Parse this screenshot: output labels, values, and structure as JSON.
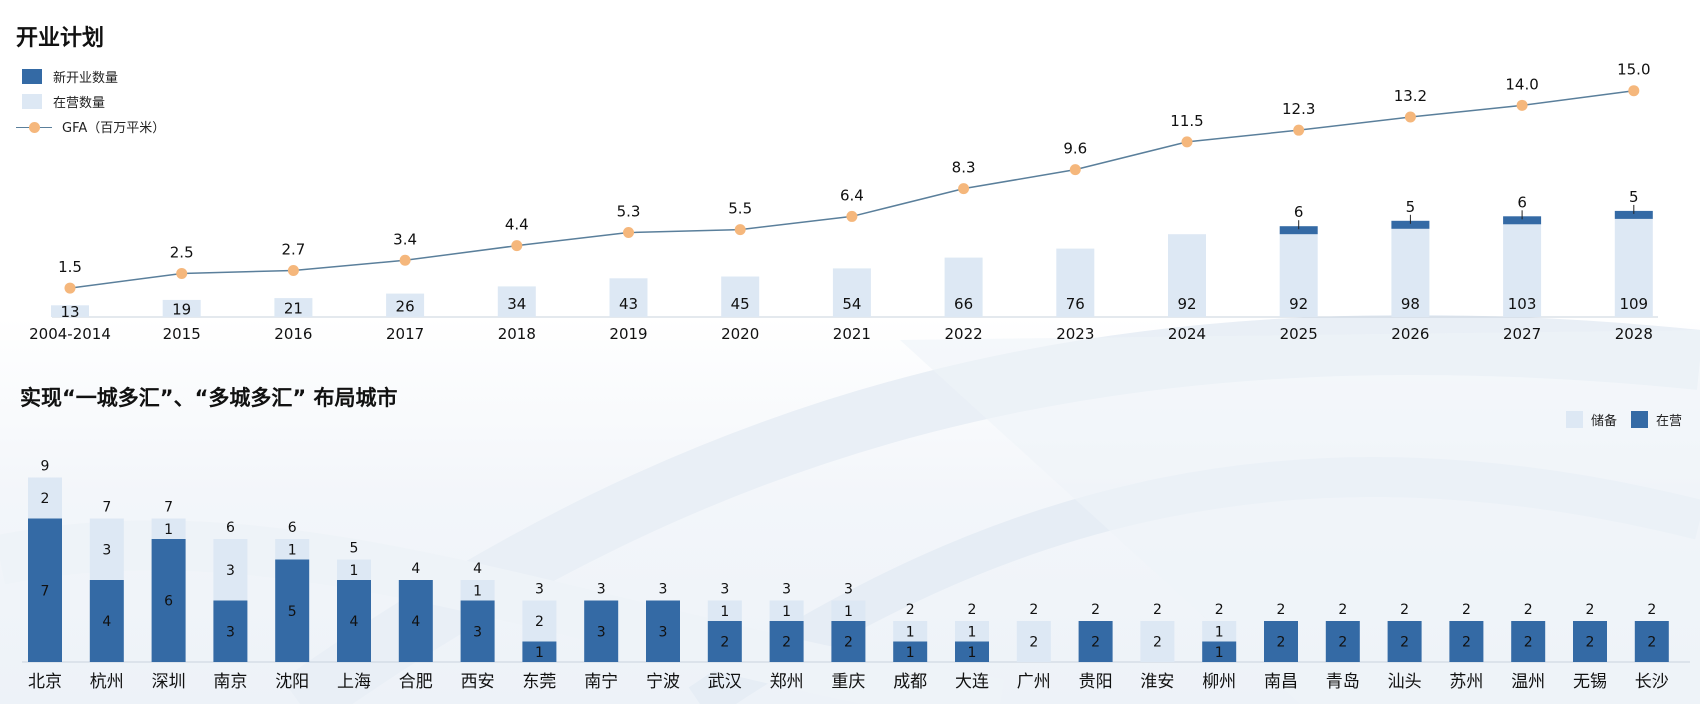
{
  "titles": {
    "top": "开业计划",
    "bottom": "实现“一城多汇”、“多城多汇” 布局城市"
  },
  "legend_top": {
    "new": "新开业数量",
    "operating": "在营数量",
    "gfa": "GFA（百万平米）"
  },
  "legend_bottom": {
    "reserve": "储备",
    "operating": "在营"
  },
  "colors": {
    "dark": "#346aa5",
    "light": "#dde8f4",
    "line": "#5a7f9b",
    "marker": "#f5b77c"
  },
  "chart_data": [
    {
      "type": "bar",
      "title": "开业计划",
      "categories": [
        "2004-2014",
        "2015",
        "2016",
        "2017",
        "2018",
        "2019",
        "2020",
        "2021",
        "2022",
        "2023",
        "2024",
        "2025",
        "2026",
        "2027",
        "2028"
      ],
      "series": [
        {
          "name": "在营数量",
          "values": [
            13,
            19,
            21,
            26,
            34,
            43,
            45,
            54,
            66,
            76,
            92,
            92,
            98,
            103,
            109
          ]
        },
        {
          "name": "新开业数量",
          "values": [
            0,
            0,
            0,
            0,
            0,
            0,
            0,
            0,
            0,
            0,
            0,
            6,
            5,
            6,
            5
          ]
        },
        {
          "name": "GFA（百万平米）",
          "type": "line",
          "values": [
            1.5,
            2.5,
            2.7,
            3.4,
            4.4,
            5.3,
            5.5,
            6.4,
            8.3,
            9.6,
            11.5,
            12.3,
            13.2,
            14.0,
            15.0
          ]
        }
      ],
      "gfa_labels": [
        "1.5",
        "2.5",
        "2.7",
        "3.4",
        "4.4",
        "5.3",
        "5.5",
        "6.4",
        "8.3",
        "9.6",
        "11.5",
        "12.3",
        "13.2",
        "14.0",
        "15.0"
      ],
      "legend": "top-left"
    },
    {
      "type": "bar",
      "stacked": true,
      "title": "实现“一城多汇”、“多城多汇” 布局城市",
      "categories": [
        "北京",
        "杭州",
        "深圳",
        "南京",
        "沈阳",
        "上海",
        "合肥",
        "西安",
        "东莞",
        "南宁",
        "宁波",
        "武汉",
        "郑州",
        "重庆",
        "成都",
        "大连",
        "广州",
        "贵阳",
        "淮安",
        "柳州",
        "南昌",
        "青岛",
        "汕头",
        "苏州",
        "温州",
        "无锡",
        "长沙"
      ],
      "series": [
        {
          "name": "在营",
          "values": [
            7,
            4,
            6,
            3,
            5,
            4,
            4,
            3,
            1,
            3,
            3,
            2,
            2,
            2,
            1,
            1,
            0,
            2,
            0,
            1,
            2,
            2,
            2,
            2,
            2,
            2,
            2
          ]
        },
        {
          "name": "储备",
          "values": [
            2,
            3,
            1,
            3,
            1,
            1,
            0,
            1,
            2,
            0,
            0,
            1,
            1,
            1,
            1,
            1,
            2,
            0,
            2,
            1,
            0,
            0,
            0,
            0,
            0,
            0,
            0
          ]
        }
      ],
      "totals": [
        9,
        7,
        7,
        6,
        6,
        5,
        4,
        4,
        3,
        3,
        3,
        3,
        3,
        3,
        2,
        2,
        2,
        2,
        2,
        2,
        2,
        2,
        2,
        2,
        2,
        2,
        2
      ],
      "legend": "top-right"
    }
  ]
}
